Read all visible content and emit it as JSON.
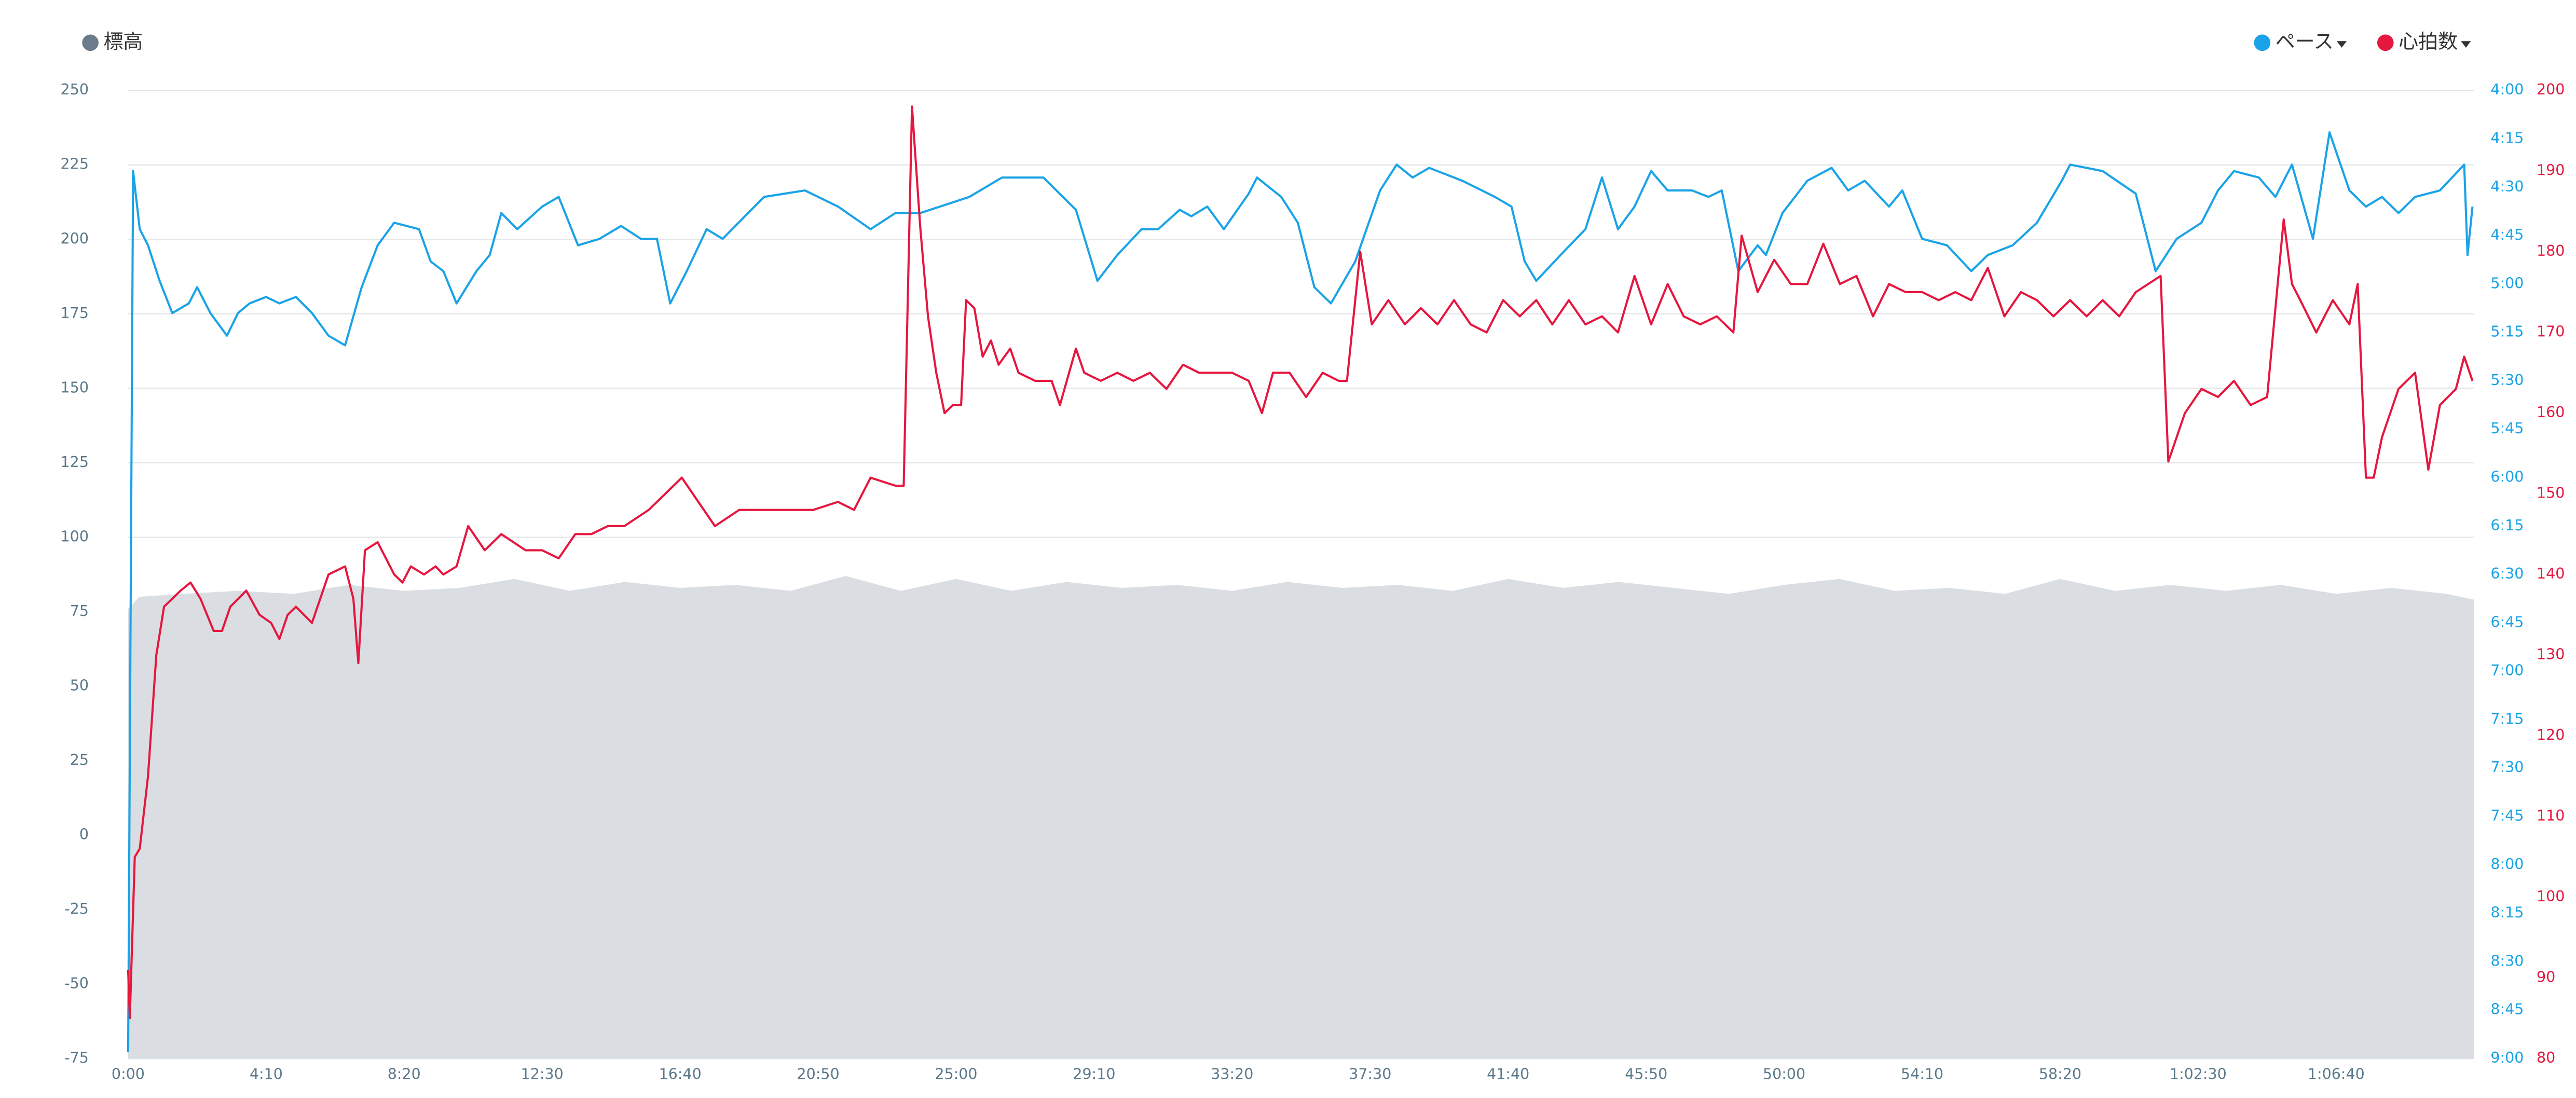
{
  "chart_data": {
    "type": "line",
    "xlim": [
      0,
      4250
    ],
    "xticks": [
      {
        "value": 0,
        "label": "0:00"
      },
      {
        "value": 250,
        "label": "4:10"
      },
      {
        "value": 500,
        "label": "8:20"
      },
      {
        "value": 750,
        "label": "12:30"
      },
      {
        "value": 1000,
        "label": "16:40"
      },
      {
        "value": 1250,
        "label": "20:50"
      },
      {
        "value": 1500,
        "label": "25:00"
      },
      {
        "value": 1750,
        "label": "29:10"
      },
      {
        "value": 2000,
        "label": "33:20"
      },
      {
        "value": 2250,
        "label": "37:30"
      },
      {
        "value": 2500,
        "label": "41:40"
      },
      {
        "value": 2750,
        "label": "45:50"
      },
      {
        "value": 3000,
        "label": "50:00"
      },
      {
        "value": 3250,
        "label": "54:10"
      },
      {
        "value": 3500,
        "label": "58:20"
      },
      {
        "value": 3750,
        "label": "1:02:30"
      },
      {
        "value": 4000,
        "label": "1:06:40"
      }
    ],
    "ylim": [
      -75,
      250
    ],
    "yticks": [
      -75,
      -50,
      -25,
      0,
      25,
      50,
      75,
      100,
      125,
      150,
      175,
      200,
      225,
      250
    ],
    "y2lim": [
      540,
      240
    ],
    "y2ticks": [
      {
        "value": 240,
        "label": "4:00"
      },
      {
        "value": 255,
        "label": "4:15"
      },
      {
        "value": 270,
        "label": "4:30"
      },
      {
        "value": 285,
        "label": "4:45"
      },
      {
        "value": 300,
        "label": "5:00"
      },
      {
        "value": 315,
        "label": "5:15"
      },
      {
        "value": 330,
        "label": "5:30"
      },
      {
        "value": 345,
        "label": "5:45"
      },
      {
        "value": 360,
        "label": "6:00"
      },
      {
        "value": 375,
        "label": "6:15"
      },
      {
        "value": 390,
        "label": "6:30"
      },
      {
        "value": 405,
        "label": "6:45"
      },
      {
        "value": 420,
        "label": "7:00"
      },
      {
        "value": 435,
        "label": "7:15"
      },
      {
        "value": 450,
        "label": "7:30"
      },
      {
        "value": 465,
        "label": "7:45"
      },
      {
        "value": 480,
        "label": "8:00"
      },
      {
        "value": 495,
        "label": "8:15"
      },
      {
        "value": 510,
        "label": "8:30"
      },
      {
        "value": 525,
        "label": "8:45"
      },
      {
        "value": 540,
        "label": "9:00"
      }
    ],
    "y3lim": [
      80,
      200
    ],
    "y3ticks": [
      80,
      90,
      100,
      110,
      120,
      130,
      140,
      150,
      160,
      170,
      180,
      190,
      200
    ],
    "grid": true,
    "series": [
      {
        "name": "標高",
        "type": "area",
        "axis": "y",
        "color": "#6b7b8c",
        "fill": "#dadee3",
        "x": [
          0,
          20,
          100,
          200,
          300,
          400,
          500,
          600,
          700,
          800,
          900,
          1000,
          1100,
          1200,
          1300,
          1400,
          1500,
          1600,
          1700,
          1800,
          1900,
          2000,
          2100,
          2200,
          2300,
          2400,
          2500,
          2600,
          2700,
          2800,
          2900,
          3000,
          3100,
          3200,
          3300,
          3400,
          3500,
          3600,
          3700,
          3800,
          3900,
          4000,
          4100,
          4200,
          4250
        ],
        "values": [
          76,
          80,
          81,
          82,
          81,
          84,
          82,
          83,
          86,
          82,
          85,
          83,
          84,
          82,
          87,
          82,
          86,
          82,
          85,
          83,
          84,
          82,
          85,
          83,
          84,
          82,
          86,
          83,
          85,
          83,
          81,
          84,
          86,
          82,
          83,
          81,
          86,
          82,
          84,
          82,
          84,
          81,
          83,
          81,
          79
        ]
      },
      {
        "name": "ペース",
        "type": "line",
        "axis": "y2",
        "color": "#1aa3e6",
        "x": [
          0,
          9,
          21,
          36,
          57,
          80,
          110,
          125,
          149,
          179,
          199,
          220,
          250,
          274,
          304,
          333,
          363,
          393,
          423,
          452,
          482,
          527,
          548,
          571,
          595,
          631,
          655,
          676,
          705,
          750,
          780,
          815,
          854,
          893,
          929,
          958,
          982,
          1012,
          1048,
          1077,
          1152,
          1226,
          1286,
          1345,
          1390,
          1435,
          1524,
          1583,
          1658,
          1717,
          1756,
          1792,
          1836,
          1866,
          1905,
          1926,
          1955,
          1985,
          2030,
          2045,
          2089,
          2119,
          2149,
          2179,
          2223,
          2268,
          2298,
          2327,
          2357,
          2417,
          2476,
          2506,
          2530,
          2551,
          2595,
          2640,
          2670,
          2699,
          2729,
          2759,
          2789,
          2833,
          2863,
          2887,
          2917,
          2952,
          2967,
          2997,
          3042,
          3086,
          3116,
          3146,
          3190,
          3214,
          3250,
          3295,
          3339,
          3369,
          3414,
          3458,
          3503,
          3518,
          3577,
          3637,
          3673,
          3711,
          3756,
          3786,
          3815,
          3860,
          3890,
          3920,
          3958,
          3988,
          4024,
          4054,
          4083,
          4113,
          4143,
          4188,
          4232,
          4238,
          4247
        ],
        "values": [
          538,
          265,
          283,
          288,
          299,
          309,
          306,
          301,
          309,
          316,
          309,
          306,
          304,
          306,
          304,
          309,
          316,
          319,
          301,
          288,
          281,
          283,
          293,
          296,
          306,
          296,
          291,
          278,
          283,
          276,
          273,
          288,
          286,
          282,
          286,
          286,
          306,
          296,
          283,
          286,
          273,
          271,
          276,
          283,
          278,
          278,
          273,
          267,
          267,
          277,
          299,
          291,
          283,
          283,
          277,
          279,
          276,
          283,
          272,
          267,
          273,
          281,
          301,
          306,
          293,
          271,
          263,
          267,
          264,
          268,
          273,
          276,
          293,
          299,
          291,
          283,
          267,
          283,
          276,
          265,
          271,
          271,
          273,
          271,
          296,
          288,
          291,
          278,
          268,
          264,
          271,
          268,
          276,
          271,
          286,
          288,
          296,
          291,
          288,
          281,
          268,
          263,
          265,
          272,
          296,
          286,
          281,
          271,
          265,
          267,
          273,
          263,
          286,
          253,
          271,
          276,
          273,
          278,
          273,
          271,
          263,
          291,
          276
        ]
      },
      {
        "name": "心拍数",
        "type": "line",
        "axis": "y3",
        "color": "#e5173f",
        "x": [
          0,
          3,
          12,
          21,
          36,
          51,
          65,
          95,
          113,
          131,
          155,
          170,
          185,
          214,
          238,
          259,
          274,
          289,
          304,
          333,
          348,
          363,
          393,
          408,
          417,
          429,
          452,
          482,
          497,
          512,
          536,
          557,
          571,
          595,
          616,
          646,
          676,
          720,
          750,
          780,
          810,
          839,
          869,
          899,
          943,
          973,
          1003,
          1033,
          1063,
          1107,
          1152,
          1196,
          1241,
          1286,
          1315,
          1345,
          1390,
          1405,
          1420,
          1435,
          1449,
          1464,
          1479,
          1494,
          1509,
          1518,
          1533,
          1548,
          1563,
          1577,
          1598,
          1613,
          1643,
          1673,
          1688,
          1717,
          1732,
          1762,
          1792,
          1821,
          1851,
          1881,
          1911,
          1940,
          1970,
          2000,
          2030,
          2054,
          2074,
          2104,
          2134,
          2164,
          2193,
          2208,
          2232,
          2253,
          2283,
          2313,
          2342,
          2372,
          2402,
          2432,
          2461,
          2491,
          2521,
          2551,
          2580,
          2610,
          2640,
          2670,
          2699,
          2729,
          2759,
          2789,
          2818,
          2848,
          2878,
          2908,
          2923,
          2952,
          2982,
          3012,
          3042,
          3071,
          3101,
          3131,
          3161,
          3190,
          3220,
          3250,
          3280,
          3310,
          3339,
          3369,
          3399,
          3429,
          3458,
          3488,
          3518,
          3548,
          3577,
          3607,
          3637,
          3682,
          3696,
          3726,
          3756,
          3786,
          3815,
          3845,
          3875,
          3905,
          3920,
          3935,
          3964,
          3994,
          4024,
          4039,
          4054,
          4068,
          4083,
          4113,
          4143,
          4167,
          4188,
          4217,
          4232,
          4247
        ],
        "values": [
          91,
          85,
          105,
          106,
          115,
          130,
          136,
          138,
          139,
          137,
          133,
          133,
          136,
          138,
          135,
          134,
          132,
          135,
          136,
          134,
          137,
          140,
          141,
          137,
          129,
          143,
          144,
          140,
          139,
          141,
          140,
          141,
          140,
          141,
          146,
          143,
          145,
          143,
          143,
          142,
          145,
          145,
          146,
          146,
          148,
          150,
          152,
          149,
          146,
          148,
          148,
          148,
          148,
          149,
          148,
          152,
          151,
          151,
          198,
          183,
          172,
          165,
          160,
          161,
          161,
          174,
          173,
          167,
          169,
          166,
          168,
          165,
          164,
          164,
          161,
          168,
          165,
          164,
          165,
          164,
          165,
          163,
          166,
          165,
          165,
          165,
          164,
          160,
          165,
          165,
          162,
          165,
          164,
          164,
          180,
          171,
          174,
          171,
          173,
          171,
          174,
          171,
          170,
          174,
          172,
          174,
          171,
          174,
          171,
          172,
          170,
          177,
          171,
          176,
          172,
          171,
          172,
          170,
          182,
          175,
          179,
          176,
          176,
          181,
          176,
          177,
          172,
          176,
          175,
          175,
          174,
          175,
          174,
          178,
          172,
          175,
          174,
          172,
          174,
          172,
          174,
          172,
          175,
          177,
          154,
          160,
          163,
          162,
          164,
          161,
          162,
          184,
          176,
          174,
          170,
          174,
          171,
          176,
          152,
          152,
          157,
          163,
          165,
          153,
          161,
          163,
          167,
          164
        ]
      }
    ]
  }
}
